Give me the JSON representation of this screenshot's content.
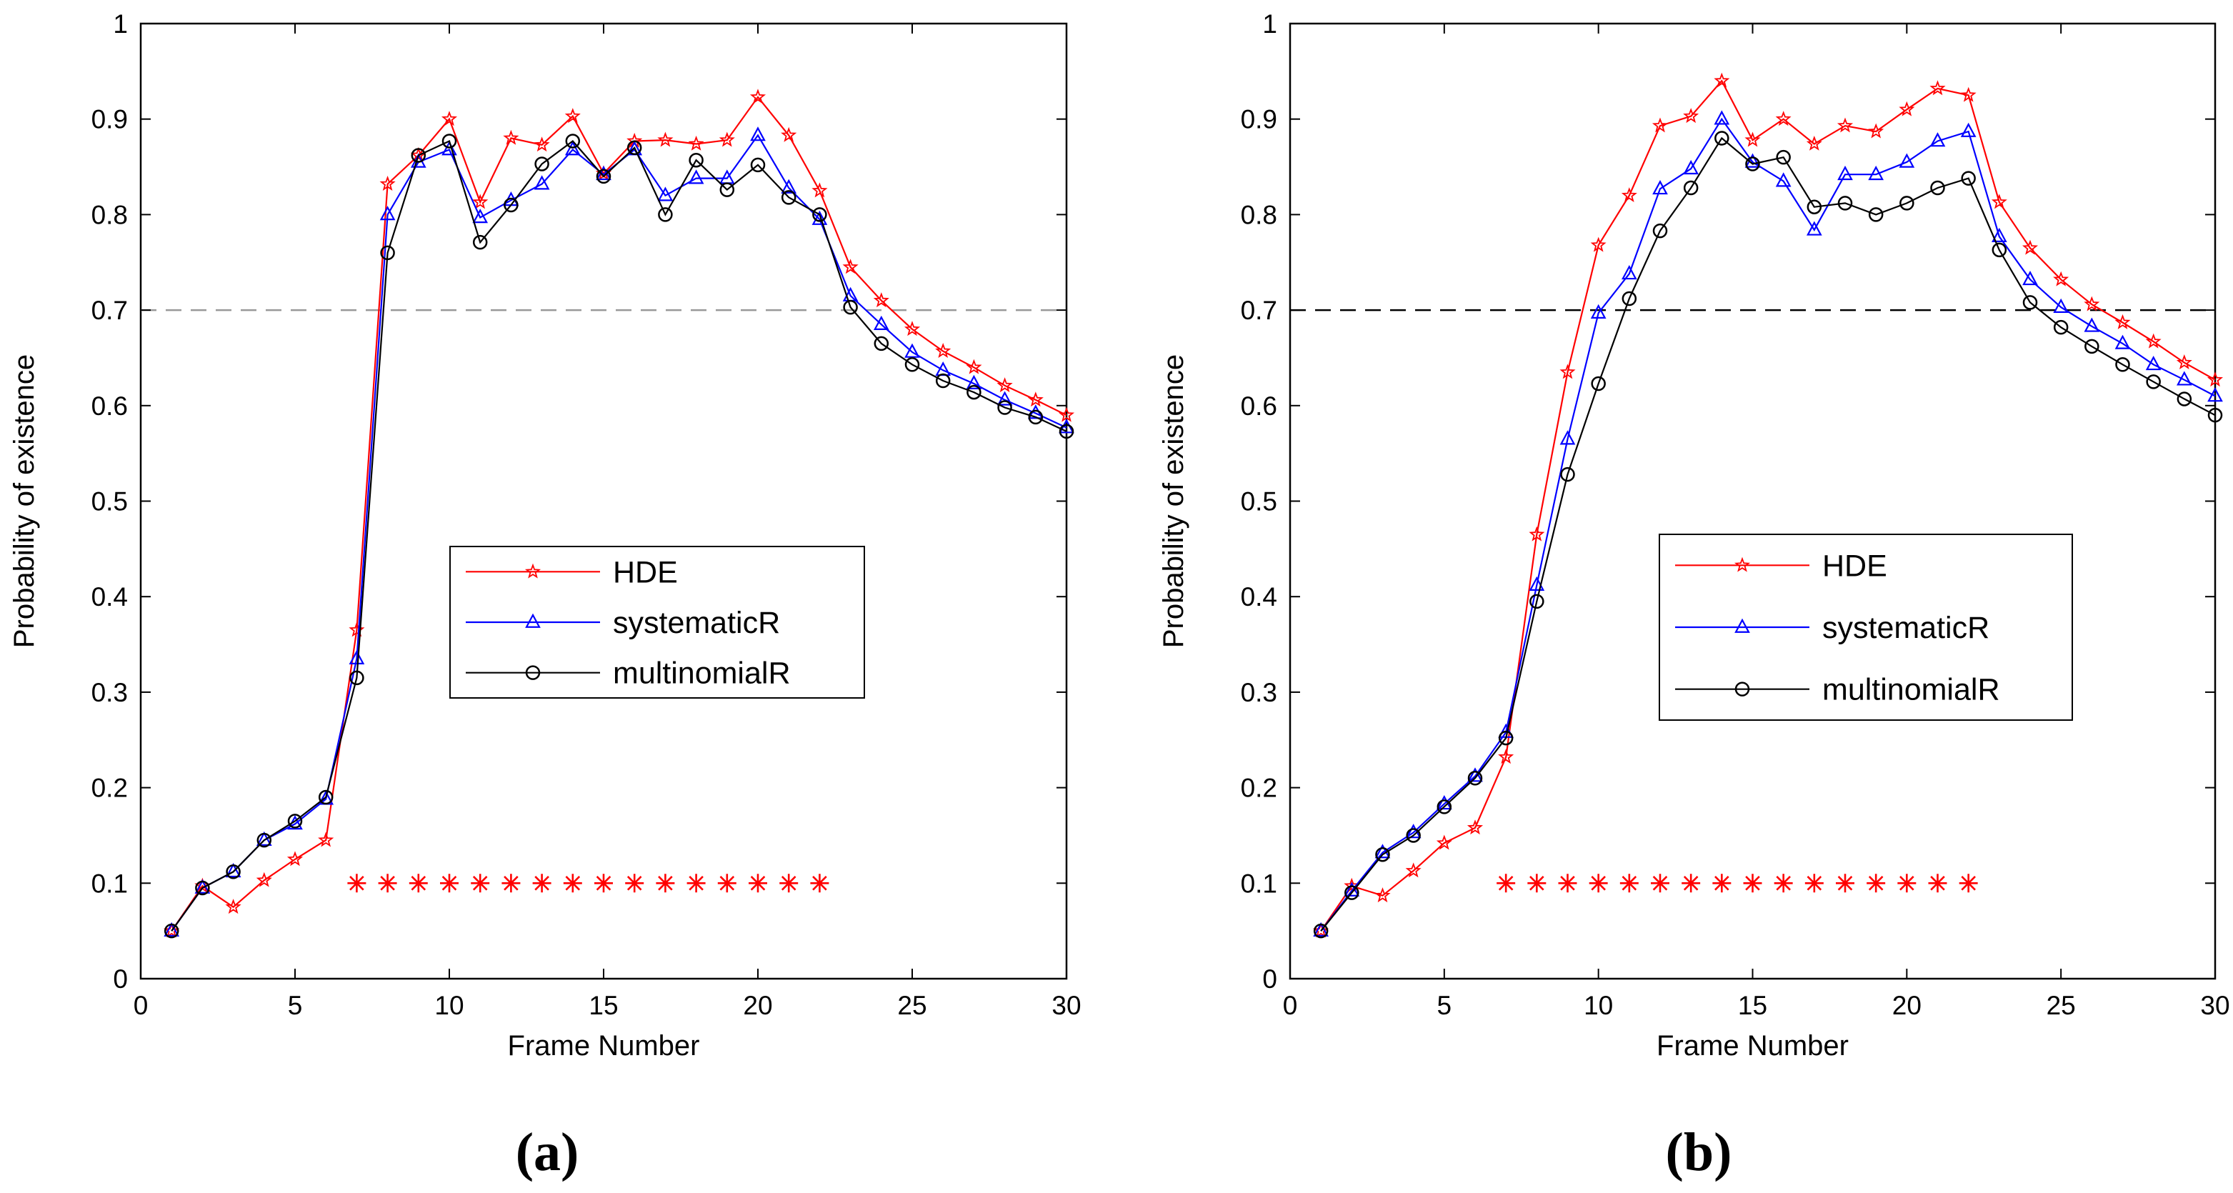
{
  "chart_data": [
    {
      "type": "line",
      "panel_label": "(a)",
      "xlabel": "Frame Number",
      "ylabel": "Probability of existence",
      "xlim": [
        0,
        30
      ],
      "ylim": [
        0,
        1
      ],
      "xticks": [
        0,
        5,
        10,
        15,
        20,
        25,
        30
      ],
      "xtick_labels": [
        "0",
        "5",
        "10",
        "15",
        "20",
        "25",
        "30"
      ],
      "yticks": [
        0,
        0.1,
        0.2,
        0.3,
        0.4,
        0.5,
        0.6,
        0.7,
        0.8,
        0.9,
        1
      ],
      "ytick_labels": [
        "0",
        "0.1",
        "0.2",
        "0.3",
        "0.4",
        "0.5",
        "0.6",
        "0.7",
        "0.8",
        "0.9",
        "1"
      ],
      "threshold": 0.7,
      "threshold_color": "#999999",
      "legend_position": "center-right",
      "x": [
        1,
        2,
        3,
        4,
        5,
        6,
        7,
        8,
        9,
        10,
        11,
        12,
        13,
        14,
        15,
        16,
        17,
        18,
        19,
        20,
        21,
        22,
        23,
        24,
        25,
        26,
        27,
        28,
        29,
        30
      ],
      "series": [
        {
          "name": "HDE",
          "color": "#ff0000",
          "marker": "star",
          "values": [
            0.05,
            0.097,
            0.075,
            0.103,
            0.125,
            0.145,
            0.365,
            0.832,
            0.862,
            0.9,
            0.813,
            0.88,
            0.873,
            0.903,
            0.843,
            0.877,
            0.878,
            0.874,
            0.878,
            0.923,
            0.883,
            0.825,
            0.745,
            0.71,
            0.68,
            0.657,
            0.64,
            0.621,
            0.606,
            0.59
          ]
        },
        {
          "name": "systematicR",
          "color": "#0000ff",
          "marker": "triangle",
          "values": [
            0.05,
            0.095,
            0.112,
            0.145,
            0.162,
            0.188,
            0.335,
            0.8,
            0.855,
            0.868,
            0.797,
            0.815,
            0.832,
            0.868,
            0.842,
            0.868,
            0.82,
            0.838,
            0.838,
            0.883,
            0.828,
            0.795,
            0.715,
            0.685,
            0.656,
            0.637,
            0.623,
            0.606,
            0.592,
            0.577
          ]
        },
        {
          "name": "multinomialR",
          "color": "#000000",
          "marker": "circle",
          "values": [
            0.05,
            0.095,
            0.112,
            0.145,
            0.165,
            0.19,
            0.315,
            0.76,
            0.862,
            0.877,
            0.771,
            0.81,
            0.853,
            0.877,
            0.84,
            0.87,
            0.8,
            0.857,
            0.826,
            0.852,
            0.818,
            0.8,
            0.703,
            0.665,
            0.643,
            0.626,
            0.614,
            0.598,
            0.588,
            0.573
          ]
        }
      ],
      "detection": {
        "color": "#ff0000",
        "marker": "asterisk",
        "y": 0.1,
        "x": [
          7,
          8,
          9,
          10,
          11,
          12,
          13,
          14,
          15,
          16,
          17,
          18,
          19,
          20,
          21,
          22
        ]
      }
    },
    {
      "type": "line",
      "panel_label": "(b)",
      "xlabel": "Frame Number",
      "ylabel": "Probability of existence",
      "xlim": [
        0,
        30
      ],
      "ylim": [
        0,
        1
      ],
      "xticks": [
        0,
        5,
        10,
        15,
        20,
        25,
        30
      ],
      "xtick_labels": [
        "0",
        "5",
        "10",
        "15",
        "20",
        "25",
        "30"
      ],
      "yticks": [
        0,
        0.1,
        0.2,
        0.3,
        0.4,
        0.5,
        0.6,
        0.7,
        0.8,
        0.9,
        1
      ],
      "ytick_labels": [
        "0",
        "0.1",
        "0.2",
        "0.3",
        "0.4",
        "0.5",
        "0.6",
        "0.7",
        "0.8",
        "0.9",
        "1"
      ],
      "threshold": 0.7,
      "threshold_color": "#000000",
      "legend_position": "center-right",
      "x": [
        1,
        2,
        3,
        4,
        5,
        6,
        7,
        8,
        9,
        10,
        11,
        12,
        13,
        14,
        15,
        16,
        17,
        18,
        19,
        20,
        21,
        22,
        23,
        24,
        25,
        26,
        27,
        28,
        29,
        30
      ],
      "series": [
        {
          "name": "HDE",
          "color": "#ff0000",
          "marker": "star",
          "values": [
            0.05,
            0.097,
            0.087,
            0.113,
            0.142,
            0.158,
            0.232,
            0.465,
            0.635,
            0.768,
            0.82,
            0.893,
            0.903,
            0.94,
            0.878,
            0.9,
            0.874,
            0.893,
            0.887,
            0.91,
            0.932,
            0.925,
            0.813,
            0.765,
            0.732,
            0.706,
            0.687,
            0.667,
            0.645,
            0.627
          ]
        },
        {
          "name": "systematicR",
          "color": "#0000ff",
          "marker": "triangle",
          "values": [
            0.05,
            0.092,
            0.132,
            0.153,
            0.183,
            0.212,
            0.258,
            0.412,
            0.565,
            0.697,
            0.738,
            0.827,
            0.848,
            0.9,
            0.855,
            0.835,
            0.784,
            0.842,
            0.842,
            0.855,
            0.877,
            0.887,
            0.777,
            0.732,
            0.703,
            0.683,
            0.665,
            0.643,
            0.627,
            0.61
          ]
        },
        {
          "name": "multinomialR",
          "color": "#000000",
          "marker": "circle",
          "values": [
            0.05,
            0.09,
            0.13,
            0.15,
            0.18,
            0.21,
            0.252,
            0.395,
            0.528,
            0.623,
            0.712,
            0.783,
            0.828,
            0.88,
            0.853,
            0.86,
            0.808,
            0.812,
            0.8,
            0.812,
            0.828,
            0.838,
            0.763,
            0.708,
            0.682,
            0.662,
            0.643,
            0.625,
            0.607,
            0.59
          ]
        }
      ],
      "detection": {
        "color": "#ff0000",
        "marker": "asterisk",
        "y": 0.1,
        "x": [
          7,
          8,
          9,
          10,
          11,
          12,
          13,
          14,
          15,
          16,
          17,
          18,
          19,
          20,
          21,
          22
        ]
      }
    }
  ]
}
